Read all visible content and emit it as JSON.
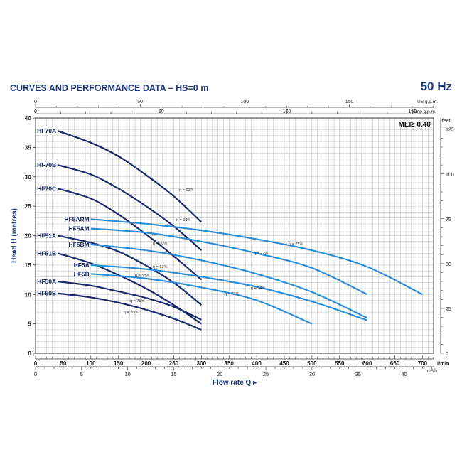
{
  "header": {
    "title": "CURVES AND PERFORMANCE DATA  – HS=0 m",
    "frequency": "50 Hz"
  },
  "chart_data": {
    "type": "line",
    "mei_label": "MEI≥ 0.40",
    "x_axis": {
      "label": "Flow rate Q",
      "unit_lmin": "l/min",
      "unit_m3h": "m³/h",
      "range_lmin": [
        0,
        720
      ],
      "ticks_lmin": [
        0,
        50,
        100,
        150,
        200,
        250,
        300,
        350,
        400,
        450,
        500,
        550,
        600,
        650,
        700
      ],
      "ticks_m3h": [
        0,
        5,
        10,
        15,
        20,
        25,
        30,
        35,
        40
      ],
      "top_usgpm_label": "US g.p.m.",
      "top_usgpm_ticks": [
        0,
        50,
        100,
        150
      ],
      "top_impgpm_label": "Imp g.p.m.",
      "top_impgpm_ticks": [
        0,
        50,
        100,
        150
      ]
    },
    "y_axis": {
      "label": "Head H (metres)",
      "range": [
        0,
        40
      ],
      "ticks": [
        0,
        5,
        10,
        15,
        20,
        25,
        30,
        35,
        40
      ],
      "right_label": "feet",
      "right_ticks": [
        0,
        25,
        50,
        75,
        100,
        125
      ]
    },
    "grid": true,
    "series": [
      {
        "name": "HF70A",
        "color": "#1b2a6b",
        "points": [
          [
            40,
            37.8
          ],
          [
            100,
            35.8
          ],
          [
            150,
            33.5
          ],
          [
            200,
            30.3
          ],
          [
            250,
            26.7
          ],
          [
            300,
            22.3
          ]
        ]
      },
      {
        "name": "HF70B",
        "color": "#1b2a6b",
        "points": [
          [
            40,
            32.0
          ],
          [
            100,
            30.4
          ],
          [
            150,
            28.0
          ],
          [
            200,
            25.0
          ],
          [
            250,
            21.6
          ],
          [
            300,
            17.5
          ]
        ]
      },
      {
        "name": "HF70C",
        "color": "#1b2a6b",
        "points": [
          [
            40,
            28.0
          ],
          [
            100,
            26.3
          ],
          [
            150,
            23.6
          ],
          [
            200,
            20.2
          ],
          [
            250,
            16.5
          ],
          [
            300,
            12.5
          ]
        ]
      },
      {
        "name": "HF51A",
        "color": "#1b2a6b",
        "points": [
          [
            40,
            20.0
          ],
          [
            100,
            18.8
          ],
          [
            150,
            17.3
          ],
          [
            200,
            14.9
          ],
          [
            250,
            12.0
          ],
          [
            300,
            8.2
          ]
        ]
      },
      {
        "name": "HF51B",
        "color": "#1b2a6b",
        "points": [
          [
            40,
            17.0
          ],
          [
            100,
            15.3
          ],
          [
            150,
            13.3
          ],
          [
            200,
            11.0
          ],
          [
            250,
            8.2
          ],
          [
            300,
            5.0
          ]
        ]
      },
      {
        "name": "HF50A",
        "color": "#1b2a6b",
        "points": [
          [
            40,
            12.2
          ],
          [
            100,
            11.5
          ],
          [
            150,
            10.5
          ],
          [
            200,
            9.4
          ],
          [
            250,
            7.9
          ],
          [
            300,
            5.7
          ]
        ]
      },
      {
        "name": "HF50B",
        "color": "#1b2a6b",
        "points": [
          [
            40,
            10.2
          ],
          [
            100,
            9.5
          ],
          [
            150,
            8.6
          ],
          [
            200,
            7.4
          ],
          [
            250,
            5.9
          ],
          [
            300,
            4.0
          ]
        ]
      },
      {
        "name": "HF5ARM",
        "color": "#2b8fd8",
        "points": [
          [
            100,
            22.8
          ],
          [
            200,
            22.0
          ],
          [
            300,
            20.9
          ],
          [
            400,
            19.4
          ],
          [
            500,
            17.5
          ],
          [
            600,
            14.7
          ],
          [
            700,
            10.0
          ]
        ]
      },
      {
        "name": "HF5AM",
        "color": "#2b8fd8",
        "points": [
          [
            100,
            21.2
          ],
          [
            200,
            20.5
          ],
          [
            300,
            19.0
          ],
          [
            400,
            17.0
          ],
          [
            500,
            14.5
          ],
          [
            600,
            10.0
          ]
        ]
      },
      {
        "name": "HF5BM",
        "color": "#2b8fd8",
        "points": [
          [
            100,
            18.5
          ],
          [
            200,
            17.5
          ],
          [
            300,
            15.8
          ],
          [
            400,
            13.5
          ],
          [
            500,
            10.4
          ],
          [
            600,
            6.0
          ]
        ]
      },
      {
        "name": "HF5A",
        "color": "#2b8fd8",
        "points": [
          [
            100,
            15.0
          ],
          [
            200,
            14.3
          ],
          [
            300,
            13.0
          ],
          [
            400,
            11.3
          ],
          [
            500,
            8.8
          ],
          [
            600,
            5.6
          ]
        ]
      },
      {
        "name": "HF5B",
        "color": "#2b8fd8",
        "points": [
          [
            100,
            13.5
          ],
          [
            200,
            12.7
          ],
          [
            300,
            11.2
          ],
          [
            400,
            9.0
          ],
          [
            500,
            5.0
          ]
        ]
      }
    ],
    "annotations": [
      "η = 60%",
      "η = 60%",
      "η = 60%",
      "η = 63%",
      "η = 58%",
      "η = 71%",
      "η = 70%",
      "η = 75%",
      "η = 72%",
      "η = 74%",
      "η = 72%"
    ]
  }
}
